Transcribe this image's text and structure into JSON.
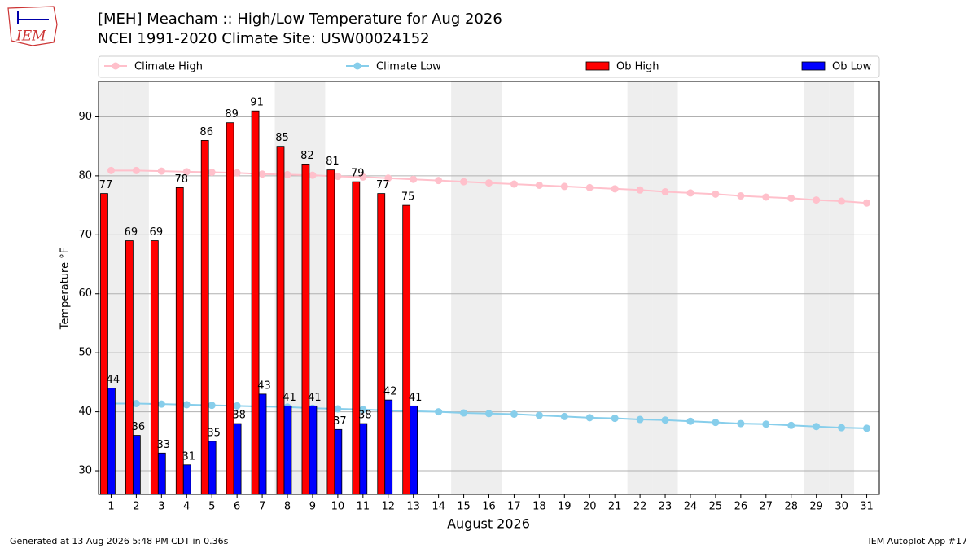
{
  "chart_data": {
    "type": "bar",
    "logo_text": "IEM",
    "title": "[MEH] Meacham :: High/Low Temperature for Aug 2026",
    "subtitle": "NCEI 1991-2020 Climate Site: USW00024152",
    "x_label": "August 2026",
    "y_label": "Temperature °F",
    "x": [
      1,
      2,
      3,
      4,
      5,
      6,
      7,
      8,
      9,
      10,
      11,
      12,
      13,
      14,
      15,
      16,
      17,
      18,
      19,
      20,
      21,
      22,
      23,
      24,
      25,
      26,
      27,
      28,
      29,
      30,
      31
    ],
    "xlim": [
      0.5,
      31.5
    ],
    "xticks": [
      1,
      2,
      3,
      4,
      5,
      6,
      7,
      8,
      9,
      10,
      11,
      12,
      13,
      14,
      15,
      16,
      17,
      18,
      19,
      20,
      21,
      22,
      23,
      24,
      25,
      26,
      27,
      28,
      29,
      30,
      31
    ],
    "ylim": [
      26,
      96
    ],
    "yticks": [
      30,
      40,
      50,
      60,
      70,
      80,
      90
    ],
    "grid": true,
    "shaded_days": [
      1,
      2,
      8,
      9,
      15,
      16,
      22,
      23,
      29,
      30
    ],
    "shade_color": "#eeeeee",
    "series": [
      {
        "name": "Climate High",
        "kind": "line",
        "color": "#ffc0cb",
        "values": [
          80.9,
          80.9,
          80.8,
          80.7,
          80.6,
          80.5,
          80.3,
          80.2,
          80.1,
          79.9,
          79.8,
          79.6,
          79.4,
          79.2,
          79.0,
          78.8,
          78.6,
          78.4,
          78.2,
          78.0,
          77.8,
          77.6,
          77.3,
          77.1,
          76.9,
          76.6,
          76.4,
          76.2,
          75.9,
          75.7,
          75.4
        ]
      },
      {
        "name": "Climate Low",
        "kind": "line",
        "color": "#87ceeb",
        "values": [
          41.4,
          41.4,
          41.3,
          41.2,
          41.1,
          41.0,
          40.9,
          40.8,
          40.6,
          40.5,
          40.4,
          40.2,
          40.1,
          40.0,
          39.8,
          39.7,
          39.6,
          39.4,
          39.2,
          39.0,
          38.9,
          38.7,
          38.6,
          38.4,
          38.2,
          38.0,
          37.9,
          37.7,
          37.5,
          37.3,
          37.2
        ]
      },
      {
        "name": "Ob High",
        "kind": "bar",
        "color": "#ff0000",
        "values": [
          77,
          69,
          69,
          78,
          86,
          89,
          91,
          85,
          82,
          81,
          79,
          77,
          75,
          null,
          null,
          null,
          null,
          null,
          null,
          null,
          null,
          null,
          null,
          null,
          null,
          null,
          null,
          null,
          null,
          null,
          null
        ]
      },
      {
        "name": "Ob Low",
        "kind": "bar",
        "color": "#0000ff",
        "values": [
          44,
          36,
          33,
          31,
          35,
          38,
          43,
          41,
          41,
          37,
          38,
          42,
          41,
          null,
          null,
          null,
          null,
          null,
          null,
          null,
          null,
          null,
          null,
          null,
          null,
          null,
          null,
          null,
          null,
          null,
          null
        ]
      }
    ],
    "footer_left": "Generated at 13 Aug 2026 5:48 PM CDT in 0.36s",
    "footer_right": "IEM Autoplot App #17"
  }
}
